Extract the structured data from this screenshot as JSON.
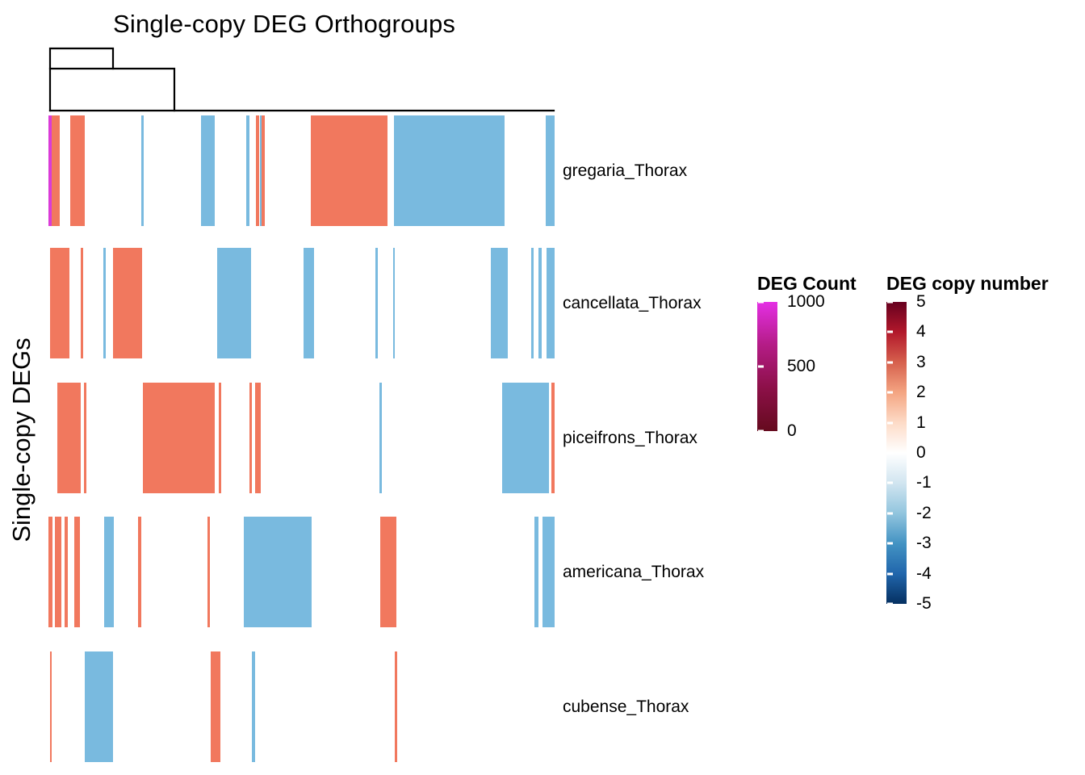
{
  "chart_data": {
    "type": "heatmap",
    "title": "Single-copy DEG Orthogroups",
    "ylabel": "Single-copy DEGs",
    "colors": {
      "positive": "#F1785E",
      "negative": "#79BADF",
      "count": "#DA3BD8",
      "background": "#FFFFFF",
      "dendrogram": "#000000"
    },
    "rows": [
      {
        "label": "gregaria_Thorax",
        "segments": [
          {
            "x": 0.0,
            "w": 0.006,
            "v": "count"
          },
          {
            "x": 0.006,
            "w": 0.016,
            "v": 1
          },
          {
            "x": 0.043,
            "w": 0.029,
            "v": 1
          },
          {
            "x": 0.183,
            "w": 0.005,
            "v": -1
          },
          {
            "x": 0.301,
            "w": 0.027,
            "v": -1
          },
          {
            "x": 0.391,
            "w": 0.006,
            "v": -1
          },
          {
            "x": 0.41,
            "w": 0.007,
            "v": 1
          },
          {
            "x": 0.4175,
            "w": 0.0035,
            "v": -1
          },
          {
            "x": 0.4215,
            "w": 0.0055,
            "v": 1
          },
          {
            "x": 0.518,
            "w": 0.152,
            "v": 1
          },
          {
            "x": 0.683,
            "w": 0.218,
            "v": -1
          },
          {
            "x": 0.982,
            "w": 0.018,
            "v": -1
          }
        ]
      },
      {
        "label": "cancellata_Thorax",
        "segments": [
          {
            "x": 0.003,
            "w": 0.038,
            "v": 1
          },
          {
            "x": 0.064,
            "w": 0.005,
            "v": 1
          },
          {
            "x": 0.108,
            "w": 0.005,
            "v": -1
          },
          {
            "x": 0.128,
            "w": 0.057,
            "v": 1
          },
          {
            "x": 0.333,
            "w": 0.067,
            "v": -1
          },
          {
            "x": 0.504,
            "w": 0.021,
            "v": -1
          },
          {
            "x": 0.646,
            "w": 0.004,
            "v": -1
          },
          {
            "x": 0.681,
            "w": 0.004,
            "v": -1
          },
          {
            "x": 0.874,
            "w": 0.033,
            "v": -1
          },
          {
            "x": 0.954,
            "w": 0.005,
            "v": -1
          },
          {
            "x": 0.968,
            "w": 0.006,
            "v": -1
          },
          {
            "x": 0.984,
            "w": 0.016,
            "v": -1
          }
        ]
      },
      {
        "label": "piceifrons_Thorax",
        "segments": [
          {
            "x": 0.018,
            "w": 0.046,
            "v": 1
          },
          {
            "x": 0.07,
            "w": 0.005,
            "v": 1
          },
          {
            "x": 0.187,
            "w": 0.142,
            "v": 1
          },
          {
            "x": 0.337,
            "w": 0.005,
            "v": 1
          },
          {
            "x": 0.397,
            "w": 0.005,
            "v": 1
          },
          {
            "x": 0.408,
            "w": 0.011,
            "v": 1
          },
          {
            "x": 0.654,
            "w": 0.004,
            "v": -1
          },
          {
            "x": 0.896,
            "w": 0.093,
            "v": -1
          },
          {
            "x": 0.994,
            "w": 0.006,
            "v": 1
          }
        ]
      },
      {
        "label": "americana_Thorax",
        "segments": [
          {
            "x": 0.0,
            "w": 0.008,
            "v": 1
          },
          {
            "x": 0.013,
            "w": 0.013,
            "v": 1
          },
          {
            "x": 0.032,
            "w": 0.006,
            "v": 1
          },
          {
            "x": 0.051,
            "w": 0.011,
            "v": 1
          },
          {
            "x": 0.11,
            "w": 0.019,
            "v": -1
          },
          {
            "x": 0.177,
            "w": 0.006,
            "v": 1
          },
          {
            "x": 0.314,
            "w": 0.005,
            "v": 1
          },
          {
            "x": 0.386,
            "w": 0.134,
            "v": -1
          },
          {
            "x": 0.656,
            "w": 0.031,
            "v": 1
          },
          {
            "x": 0.96,
            "w": 0.008,
            "v": -1
          },
          {
            "x": 0.976,
            "w": 0.024,
            "v": -1
          }
        ]
      },
      {
        "label": "cubense_Thorax",
        "segments": [
          {
            "x": 0.003,
            "w": 0.004,
            "v": 1
          },
          {
            "x": 0.072,
            "w": 0.056,
            "v": -1
          },
          {
            "x": 0.321,
            "w": 0.019,
            "v": 1
          },
          {
            "x": 0.402,
            "w": 0.006,
            "v": -1
          },
          {
            "x": 0.684,
            "w": 0.005,
            "v": 1
          }
        ]
      }
    ],
    "dendrogram": {
      "polylines": [
        [
          [
            62,
            137
          ],
          [
            62,
            60
          ],
          [
            140,
            60
          ],
          [
            140,
            85
          ]
        ],
        [
          [
            62,
            85
          ],
          [
            216,
            85
          ],
          [
            216,
            137
          ]
        ],
        [
          [
            62,
            137
          ],
          [
            686,
            137
          ]
        ]
      ]
    },
    "legends": [
      {
        "id": "deg-count",
        "title": "DEG Count",
        "ticks": [
          "1000",
          "500",
          "0"
        ],
        "gradient": [
          "#E42FE4",
          "#B41C86",
          "#8C1048",
          "#650A1E"
        ]
      },
      {
        "id": "deg-copy-number",
        "title": "DEG copy number",
        "ticks": [
          "5",
          "4",
          "3",
          "2",
          "1",
          "0",
          "-1",
          "-2",
          "-3",
          "-4",
          "-5"
        ],
        "gradient": [
          "#67001F",
          "#B2182B",
          "#D6604D",
          "#F4A582",
          "#FDDBC7",
          "#FFFFFF",
          "#D1E5F0",
          "#92C5DE",
          "#4393C3",
          "#2166AC",
          "#053061"
        ]
      }
    ]
  }
}
